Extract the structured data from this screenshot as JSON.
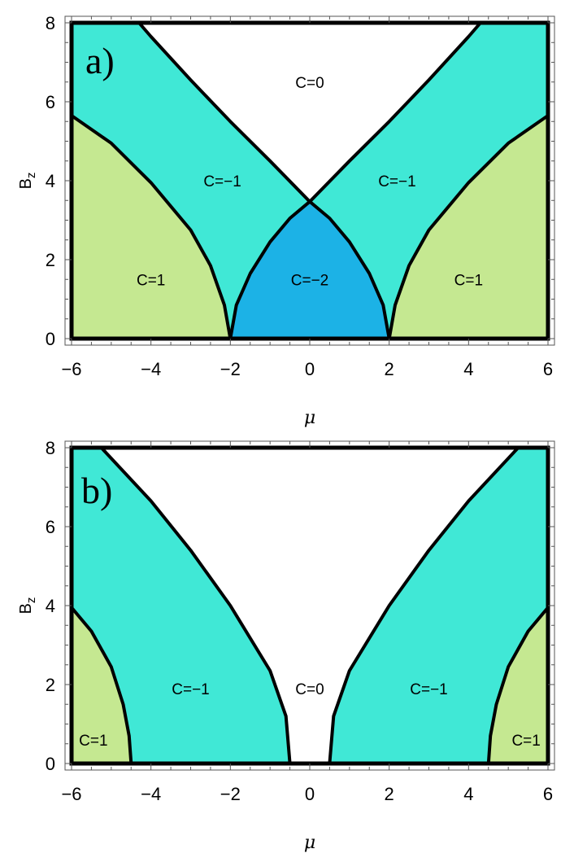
{
  "colors": {
    "c0": "#ffffff",
    "cm1": "#40e8d6",
    "cm2": "#1cb2e6",
    "c1": "#c5e891",
    "boundary": "#000000"
  },
  "chart_data": [
    {
      "type": "area",
      "panel_label": "a)",
      "xlabel": "μ",
      "ylabel_main": "B",
      "ylabel_sub": "z",
      "xlim": [
        -6,
        6
      ],
      "ylim": [
        0,
        8
      ],
      "xticks": [
        {
          "value": -6,
          "label": "−6"
        },
        {
          "value": -4,
          "label": "−4"
        },
        {
          "value": -2,
          "label": "−2"
        },
        {
          "value": 0,
          "label": "0"
        },
        {
          "value": 2,
          "label": "2"
        },
        {
          "value": 4,
          "label": "4"
        },
        {
          "value": 6,
          "label": "6"
        }
      ],
      "yticks": [
        {
          "value": 0,
          "label": "0"
        },
        {
          "value": 2,
          "label": "2"
        },
        {
          "value": 4,
          "label": "4"
        },
        {
          "value": 6,
          "label": "6"
        },
        {
          "value": 8,
          "label": "8"
        }
      ],
      "grid": false,
      "regions": [
        {
          "label": "C=0",
          "chern": 0,
          "label_at": [
            0,
            6.5
          ]
        },
        {
          "label": "C=−1",
          "chern": -1,
          "label_at": [
            -2.2,
            4.0
          ]
        },
        {
          "label": "C=−1",
          "chern": -1,
          "label_at": [
            2.2,
            4.0
          ]
        },
        {
          "label": "C=−2",
          "chern": -2,
          "label_at": [
            0,
            1.5
          ]
        },
        {
          "label": "C=1",
          "chern": 1,
          "label_at": [
            -4.0,
            1.5
          ]
        },
        {
          "label": "C=1",
          "chern": 1,
          "label_at": [
            4.0,
            1.5
          ]
        }
      ],
      "boundaries": [
        {
          "name": "outer-left",
          "points": [
            [
              -6.0,
              5.65
            ],
            [
              -5.0,
              4.95
            ],
            [
              -4.0,
              3.95
            ],
            [
              -3.0,
              2.75
            ],
            [
              -2.5,
              1.85
            ],
            [
              -2.15,
              0.85
            ],
            [
              -2.0,
              0.0
            ]
          ]
        },
        {
          "name": "outer-right",
          "points": [
            [
              6.0,
              5.65
            ],
            [
              5.0,
              4.95
            ],
            [
              4.0,
              3.95
            ],
            [
              3.0,
              2.75
            ],
            [
              2.5,
              1.85
            ],
            [
              2.15,
              0.85
            ],
            [
              2.0,
              0.0
            ]
          ]
        },
        {
          "name": "inner-left",
          "points": [
            [
              -2.0,
              0.0
            ],
            [
              -1.85,
              0.85
            ],
            [
              -1.5,
              1.65
            ],
            [
              -1.0,
              2.45
            ],
            [
              -0.5,
              3.05
            ],
            [
              0.0,
              3.47
            ]
          ]
        },
        {
          "name": "inner-right",
          "points": [
            [
              2.0,
              0.0
            ],
            [
              1.85,
              0.85
            ],
            [
              1.5,
              1.65
            ],
            [
              1.0,
              2.45
            ],
            [
              0.5,
              3.05
            ],
            [
              0.0,
              3.47
            ]
          ]
        },
        {
          "name": "top-left",
          "points": [
            [
              0.0,
              3.47
            ],
            [
              -1.0,
              4.5
            ],
            [
              -2.0,
              5.5
            ],
            [
              -3.0,
              6.55
            ],
            [
              -4.0,
              7.65
            ],
            [
              -4.3,
              8.0
            ]
          ]
        },
        {
          "name": "top-right",
          "points": [
            [
              0.0,
              3.47
            ],
            [
              1.0,
              4.5
            ],
            [
              2.0,
              5.5
            ],
            [
              3.0,
              6.55
            ],
            [
              4.0,
              7.65
            ],
            [
              4.3,
              8.0
            ]
          ]
        }
      ]
    },
    {
      "type": "area",
      "panel_label": "b)",
      "xlabel": "μ",
      "ylabel_main": "B",
      "ylabel_sub": "z",
      "xlim": [
        -6,
        6
      ],
      "ylim": [
        0,
        8
      ],
      "xticks": [
        {
          "value": -6,
          "label": "−6"
        },
        {
          "value": -4,
          "label": "−4"
        },
        {
          "value": -2,
          "label": "−2"
        },
        {
          "value": 0,
          "label": "0"
        },
        {
          "value": 2,
          "label": "2"
        },
        {
          "value": 4,
          "label": "4"
        },
        {
          "value": 6,
          "label": "6"
        }
      ],
      "yticks": [
        {
          "value": 0,
          "label": "0"
        },
        {
          "value": 2,
          "label": "2"
        },
        {
          "value": 4,
          "label": "4"
        },
        {
          "value": 6,
          "label": "6"
        },
        {
          "value": 8,
          "label": "8"
        }
      ],
      "grid": false,
      "regions": [
        {
          "label": "C=0",
          "chern": 0,
          "label_at": [
            0,
            1.9
          ]
        },
        {
          "label": "C=−1",
          "chern": -1,
          "label_at": [
            -3.0,
            1.9
          ]
        },
        {
          "label": "C=−1",
          "chern": -1,
          "label_at": [
            3.0,
            1.9
          ]
        },
        {
          "label": "C=1",
          "chern": 1,
          "label_at": [
            -5.45,
            0.6
          ]
        },
        {
          "label": "C=1",
          "chern": 1,
          "label_at": [
            5.45,
            0.6
          ]
        }
      ],
      "boundaries": [
        {
          "name": "outer-left",
          "points": [
            [
              -6.0,
              3.95
            ],
            [
              -5.5,
              3.35
            ],
            [
              -5.0,
              2.45
            ],
            [
              -4.7,
              1.5
            ],
            [
              -4.55,
              0.7
            ],
            [
              -4.5,
              0.0
            ]
          ]
        },
        {
          "name": "outer-right",
          "points": [
            [
              6.0,
              3.95
            ],
            [
              5.5,
              3.35
            ],
            [
              5.0,
              2.45
            ],
            [
              4.7,
              1.5
            ],
            [
              4.55,
              0.7
            ],
            [
              4.5,
              0.0
            ]
          ]
        },
        {
          "name": "inner-left",
          "points": [
            [
              -5.25,
              8.0
            ],
            [
              -4.0,
              6.65
            ],
            [
              -3.0,
              5.4
            ],
            [
              -2.0,
              4.0
            ],
            [
              -1.0,
              2.35
            ],
            [
              -0.6,
              1.2
            ],
            [
              -0.5,
              0.0
            ]
          ]
        },
        {
          "name": "inner-right",
          "points": [
            [
              5.25,
              8.0
            ],
            [
              4.0,
              6.65
            ],
            [
              3.0,
              5.4
            ],
            [
              2.0,
              4.0
            ],
            [
              1.0,
              2.35
            ],
            [
              0.6,
              1.2
            ],
            [
              0.5,
              0.0
            ]
          ]
        }
      ]
    }
  ]
}
